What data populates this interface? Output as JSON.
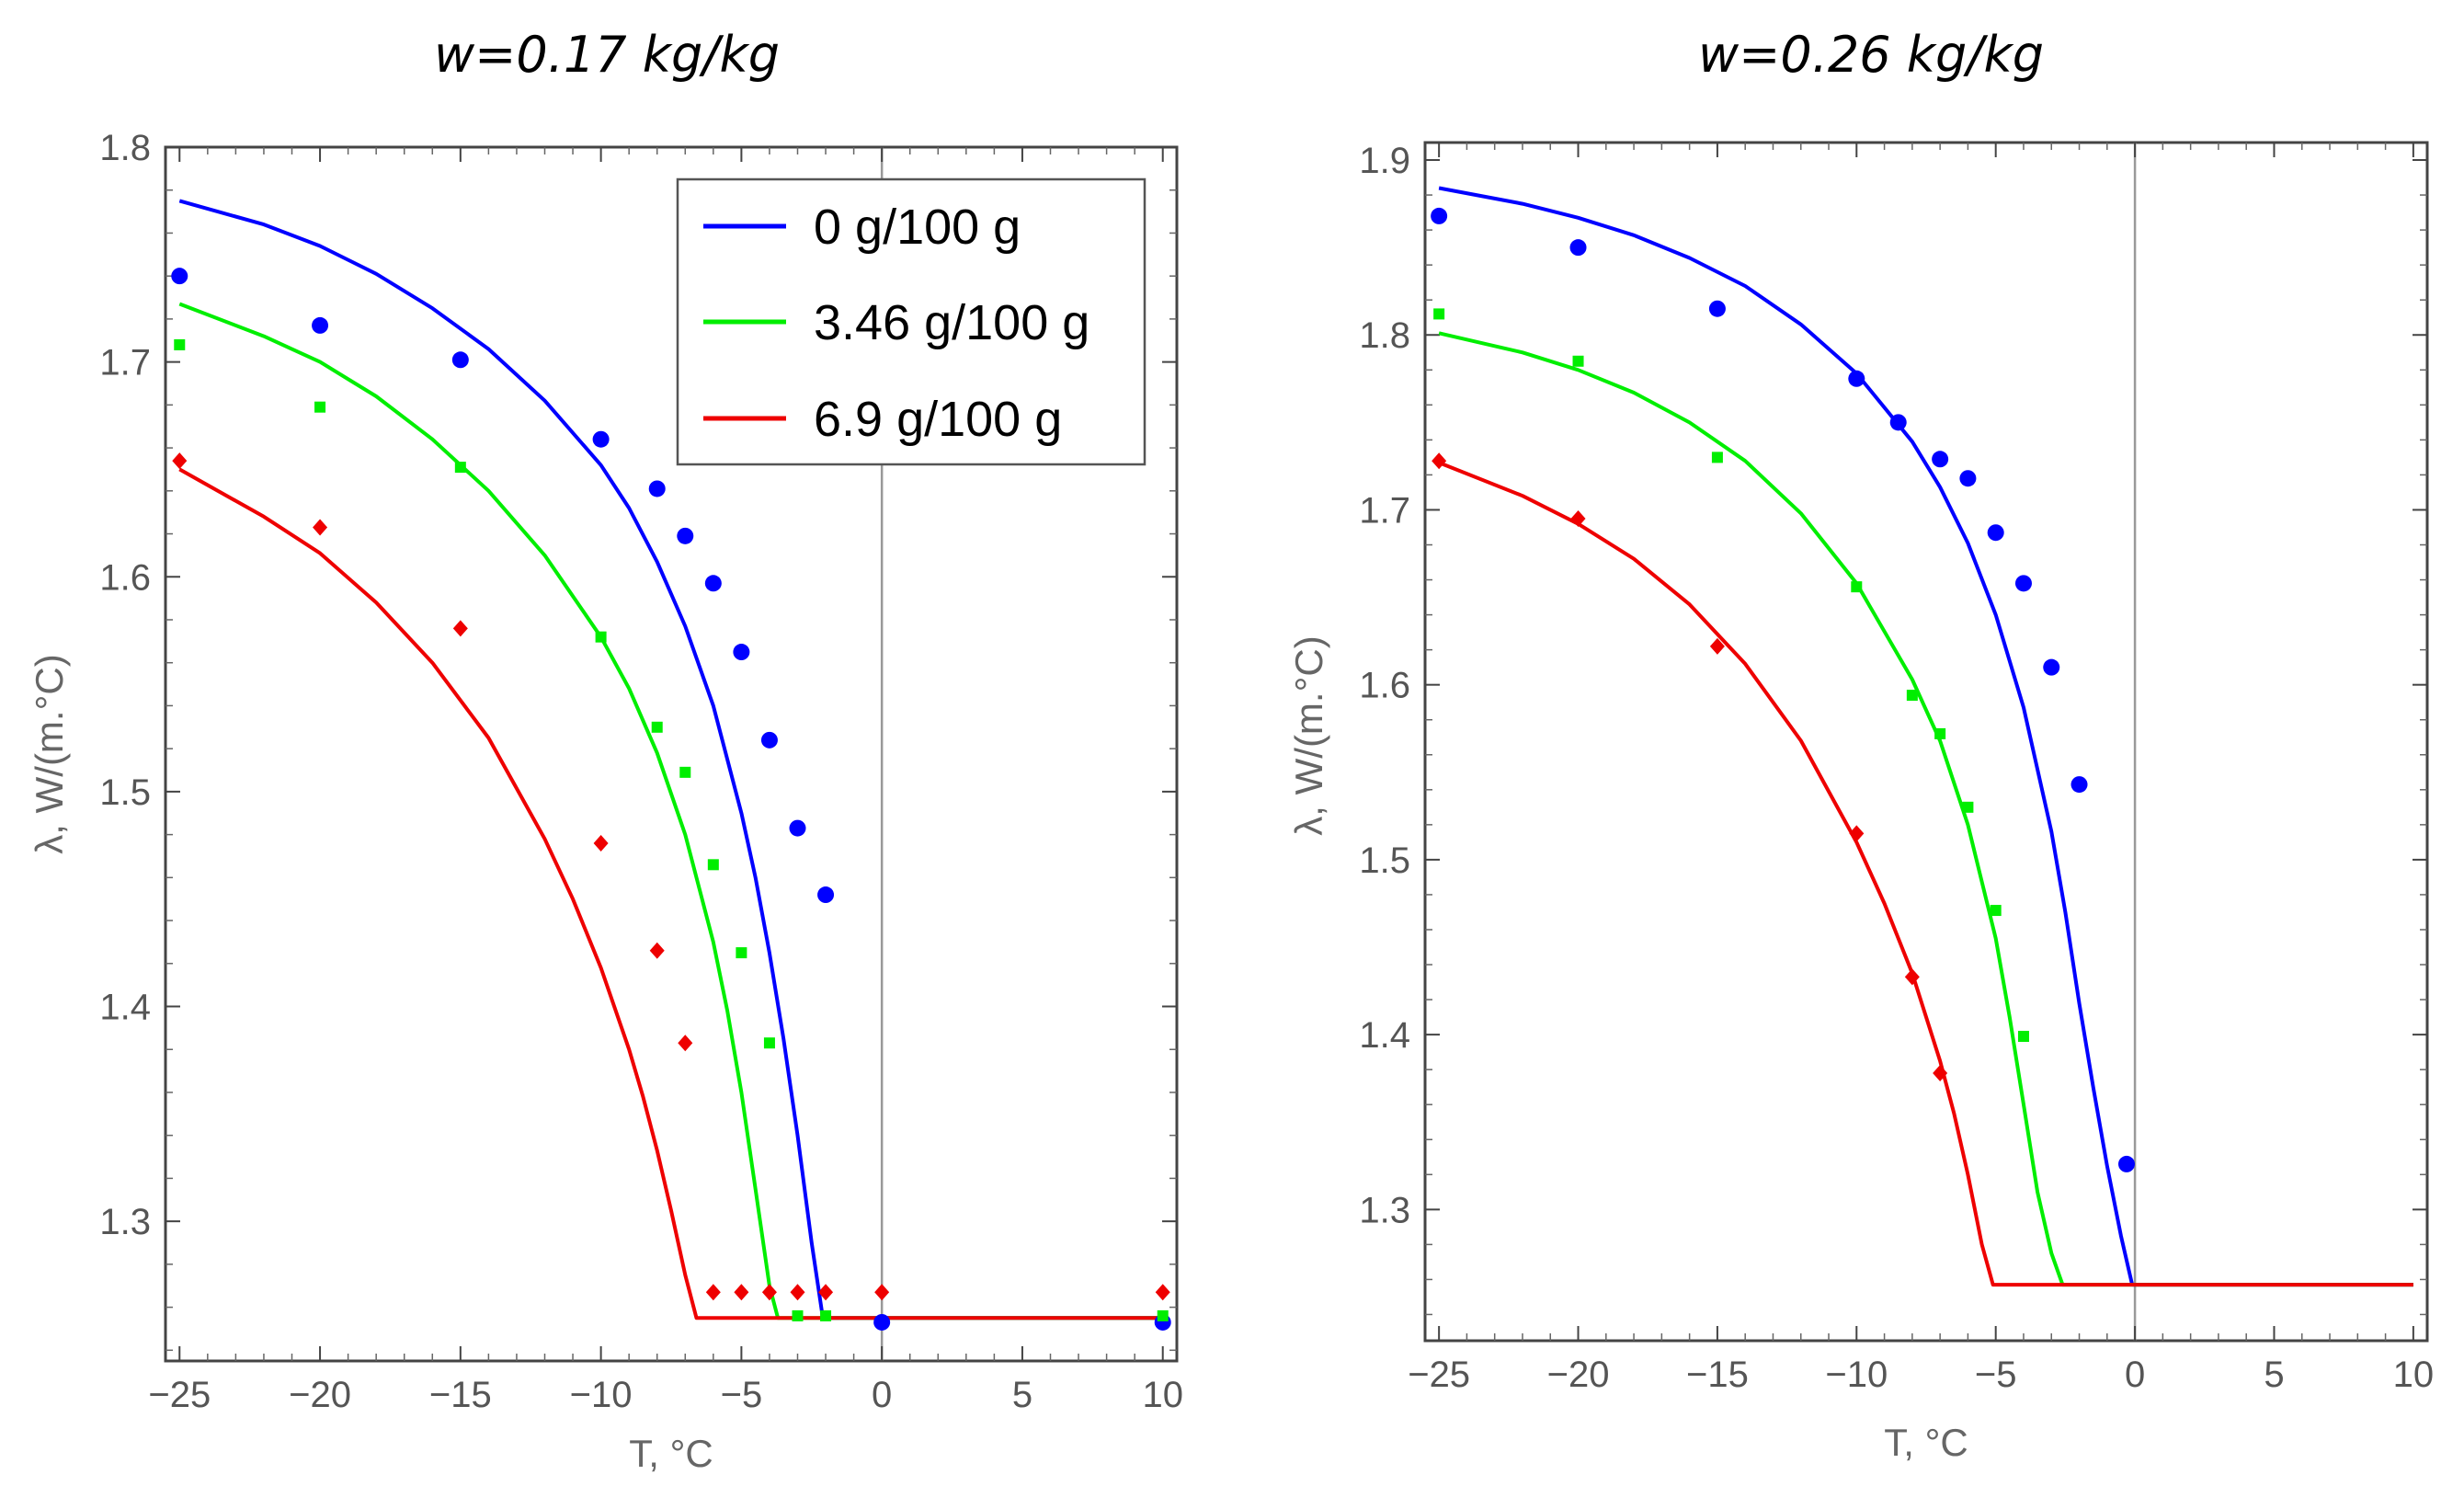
{
  "chart_data": [
    {
      "type": "line",
      "title": "w=0.17 kg/kg",
      "xlabel": "T, °C",
      "ylabel": "λ, W/(m.°C)",
      "xlim": [
        -25.5,
        10.5
      ],
      "ylim": [
        1.235,
        1.8
      ],
      "xticks": [
        -25,
        -20,
        -15,
        -10,
        -5,
        0,
        5,
        10
      ],
      "xtick_labels": [
        "−25",
        "−20",
        "−15",
        "−10",
        "−5",
        "0",
        "5",
        "10"
      ],
      "yticks": [
        1.3,
        1.4,
        1.5,
        1.6,
        1.7,
        1.8
      ],
      "ytick_labels": [
        "1.3",
        "1.4",
        "1.5",
        "1.6",
        "1.7",
        "1.8"
      ],
      "legend": "top-right",
      "series": [
        {
          "name": "0 g/100 g",
          "color": "#0000ff",
          "marker": "circle",
          "line_x": [
            -25,
            -22,
            -20,
            -18,
            -16,
            -14,
            -12,
            -10,
            -9,
            -8,
            -7,
            -6,
            -5,
            -4.5,
            -4,
            -3.5,
            -3,
            -2.5,
            -2.1,
            0,
            10
          ],
          "line_y": [
            1.775,
            1.764,
            1.754,
            1.741,
            1.725,
            1.706,
            1.682,
            1.652,
            1.632,
            1.607,
            1.577,
            1.54,
            1.49,
            1.46,
            1.425,
            1.385,
            1.34,
            1.29,
            1.255,
            1.255,
            1.255
          ],
          "points_x": [
            -25,
            -20,
            -15,
            -10,
            -8,
            -7,
            -6,
            -5,
            -4,
            -3,
            -2,
            0,
            10
          ],
          "points_y": [
            1.74,
            1.717,
            1.701,
            1.664,
            1.641,
            1.619,
            1.597,
            1.565,
            1.524,
            1.483,
            1.452,
            1.253,
            1.253
          ]
        },
        {
          "name": "3.46 g/100 g",
          "color": "#00ee00",
          "marker": "square",
          "line_x": [
            -25,
            -22,
            -20,
            -18,
            -16,
            -14,
            -12,
            -10,
            -9,
            -8,
            -7,
            -6,
            -5.5,
            -5,
            -4.5,
            -4,
            -3.7,
            0,
            10
          ],
          "line_y": [
            1.727,
            1.712,
            1.7,
            1.684,
            1.664,
            1.64,
            1.61,
            1.572,
            1.548,
            1.518,
            1.48,
            1.43,
            1.398,
            1.36,
            1.315,
            1.27,
            1.255,
            1.255,
            1.255
          ],
          "points_x": [
            -25,
            -20,
            -15,
            -10,
            -8,
            -7,
            -6,
            -5,
            -4,
            -3,
            -2,
            10
          ],
          "points_y": [
            1.708,
            1.679,
            1.651,
            1.572,
            1.53,
            1.509,
            1.466,
            1.425,
            1.383,
            1.256,
            1.256,
            1.256
          ]
        },
        {
          "name": "6.9 g/100 g",
          "color": "#ee0000",
          "marker": "diamond",
          "line_x": [
            -25,
            -22,
            -20,
            -18,
            -16,
            -14,
            -12,
            -11,
            -10,
            -9,
            -8.5,
            -8,
            -7.5,
            -7,
            -6.6,
            0,
            10
          ],
          "line_y": [
            1.65,
            1.628,
            1.611,
            1.588,
            1.56,
            1.525,
            1.478,
            1.45,
            1.418,
            1.38,
            1.358,
            1.333,
            1.305,
            1.275,
            1.255,
            1.255,
            1.255
          ],
          "points_x": [
            -25,
            -20,
            -15,
            -10,
            -8,
            -7,
            -6,
            -5,
            -4,
            -3,
            -2,
            0,
            10
          ],
          "points_y": [
            1.654,
            1.623,
            1.576,
            1.476,
            1.426,
            1.383,
            1.267,
            1.267,
            1.267,
            1.267,
            1.267,
            1.267,
            1.267
          ]
        }
      ]
    },
    {
      "type": "line",
      "title": "w=0.26 kg/kg",
      "xlabel": "T, °C",
      "ylabel": "λ, W/(m.°C)",
      "xlim": [
        -25.5,
        10.5
      ],
      "ylim": [
        1.225,
        1.91
      ],
      "xticks": [
        -25,
        -20,
        -15,
        -10,
        -5,
        0,
        5,
        10
      ],
      "xtick_labels": [
        "−25",
        "−20",
        "−15",
        "−10",
        "−5",
        "0",
        "5",
        "10"
      ],
      "yticks": [
        1.3,
        1.4,
        1.5,
        1.6,
        1.7,
        1.8,
        1.9
      ],
      "ytick_labels": [
        "1.3",
        "1.4",
        "1.5",
        "1.6",
        "1.7",
        "1.8",
        "1.9"
      ],
      "series": [
        {
          "name": "0 g/100 g",
          "color": "#0000ff",
          "marker": "circle",
          "line_x": [
            -25,
            -22,
            -20,
            -18,
            -16,
            -14,
            -12,
            -10,
            -8,
            -7,
            -6,
            -5,
            -4,
            -3,
            -2.5,
            -2,
            -1.5,
            -1,
            -0.5,
            -0.1,
            10
          ],
          "line_y": [
            1.884,
            1.875,
            1.867,
            1.857,
            1.844,
            1.828,
            1.806,
            1.778,
            1.739,
            1.713,
            1.681,
            1.64,
            1.587,
            1.516,
            1.47,
            1.418,
            1.37,
            1.325,
            1.285,
            1.257,
            1.257
          ],
          "points_x": [
            -25,
            -20,
            -15,
            -10,
            -8.5,
            -7,
            -6,
            -5,
            -4,
            -3,
            -2,
            -0.3
          ],
          "points_y": [
            1.868,
            1.85,
            1.815,
            1.775,
            1.75,
            1.729,
            1.718,
            1.687,
            1.658,
            1.61,
            1.543,
            1.326
          ]
        },
        {
          "name": "3.46 g/100 g",
          "color": "#00ee00",
          "marker": "square",
          "line_x": [
            -25,
            -22,
            -20,
            -18,
            -16,
            -14,
            -12,
            -10,
            -8,
            -7,
            -6,
            -5,
            -4.5,
            -4,
            -3.5,
            -3,
            -2.6,
            10
          ],
          "line_y": [
            1.801,
            1.79,
            1.78,
            1.767,
            1.75,
            1.728,
            1.698,
            1.658,
            1.603,
            1.568,
            1.52,
            1.455,
            1.41,
            1.36,
            1.31,
            1.275,
            1.257,
            1.257
          ],
          "points_x": [
            -25,
            -20,
            -15,
            -10,
            -8,
            -7,
            -6,
            -5,
            -4
          ],
          "points_y": [
            1.812,
            1.785,
            1.73,
            1.656,
            1.594,
            1.572,
            1.53,
            1.471,
            1.399
          ]
        },
        {
          "name": "6.9 g/100 g",
          "color": "#ee0000",
          "marker": "diamond",
          "line_x": [
            -25,
            -22,
            -20,
            -18,
            -16,
            -14,
            -12,
            -10,
            -9,
            -8,
            -7,
            -6.5,
            -6,
            -5.5,
            -5.1,
            10
          ],
          "line_y": [
            1.727,
            1.708,
            1.692,
            1.672,
            1.646,
            1.612,
            1.568,
            1.51,
            1.475,
            1.435,
            1.385,
            1.355,
            1.32,
            1.28,
            1.257,
            1.257
          ],
          "points_x": [
            -25,
            -20,
            -15,
            -10,
            -8,
            -7
          ],
          "points_y": [
            1.728,
            1.695,
            1.622,
            1.515,
            1.433,
            1.378
          ]
        }
      ]
    }
  ]
}
